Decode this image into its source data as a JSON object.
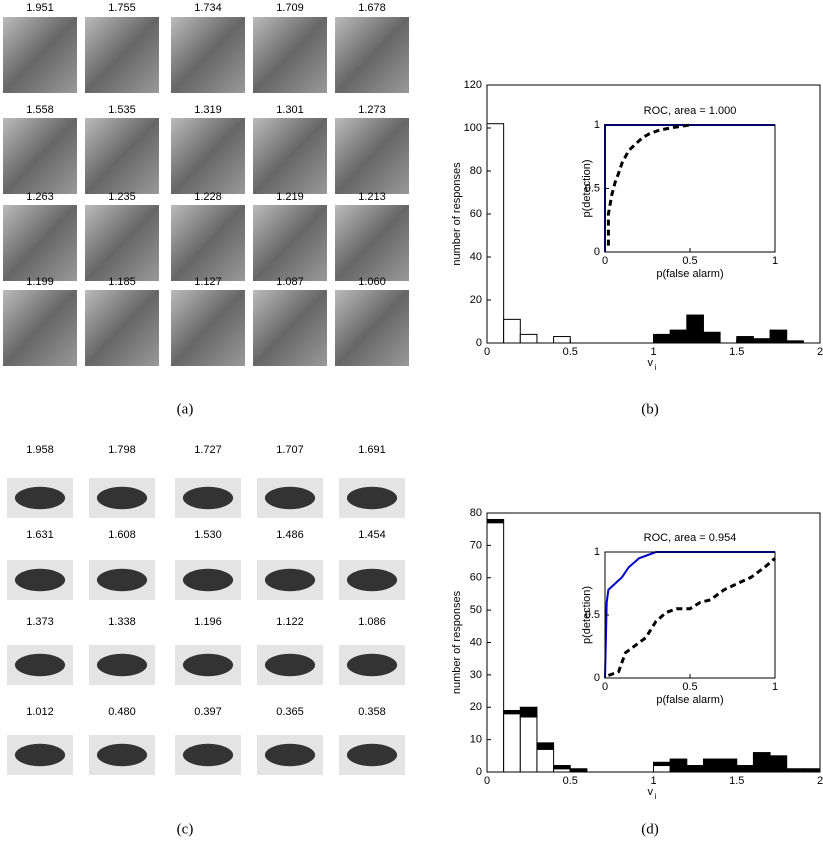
{
  "figures": [
    {
      "caption": "(a)",
      "scores": [
        "1.951",
        "1.755",
        "1.734",
        "1.709",
        "1.678",
        "1.558",
        "1.535",
        "1.319",
        "1.301",
        "1.273",
        "1.263",
        "1.235",
        "1.228",
        "1.219",
        "1.213",
        "1.199",
        "1.185",
        "1.127",
        "1.087",
        "1.060"
      ]
    },
    {
      "caption": "(c)",
      "scores": [
        "1.958",
        "1.798",
        "1.727",
        "1.707",
        "1.691",
        "1.631",
        "1.608",
        "1.530",
        "1.486",
        "1.454",
        "1.373",
        "1.338",
        "1.196",
        "1.122",
        "1.086",
        "1.012",
        "0.480",
        "0.397",
        "0.365",
        "0.358"
      ]
    }
  ],
  "chart_data": [
    {
      "type": "histogram",
      "caption": "(b)",
      "ylabel": "number of responses",
      "xlabel": "v",
      "xlabel_subscript": "i",
      "bins": [
        0,
        0.1,
        0.2,
        0.3,
        0.4,
        0.5,
        0.6,
        0.7,
        0.8,
        0.9,
        1,
        1.1,
        1.2,
        1.3,
        1.4,
        1.5,
        1.6,
        1.7,
        1.8,
        1.9,
        2
      ],
      "series": [
        {
          "color": "#ffffff",
          "values": [
            102,
            11,
            4,
            0,
            3,
            0,
            0,
            0,
            0,
            0,
            0,
            0,
            0,
            0,
            0,
            0,
            0,
            0,
            0,
            0
          ]
        },
        {
          "color": "#000000",
          "values": [
            0,
            0,
            0,
            0,
            0,
            0,
            0,
            0,
            0,
            0,
            4,
            6,
            13,
            5,
            0,
            3,
            2,
            6,
            1,
            0
          ]
        }
      ],
      "xlim": [
        0,
        2
      ],
      "ylim": [
        0,
        120
      ],
      "xticks": [
        0,
        0.5,
        1,
        1.5,
        2
      ],
      "yticks": [
        0,
        20,
        40,
        60,
        80,
        100,
        120
      ]
    },
    {
      "type": "line",
      "title": "ROC, area = 1.000",
      "xlabel": "p(false alarm)",
      "ylabel": "p(detection)",
      "series": [
        {
          "color": "#0000cc",
          "dashed": false,
          "x": [
            0,
            0,
            1
          ],
          "values": [
            0,
            1,
            1
          ]
        },
        {
          "color": "#000000",
          "dashed": true,
          "x": [
            0.02,
            0.02,
            0.04,
            0.06,
            0.08,
            0.1,
            0.12,
            0.14,
            0.18,
            0.22,
            0.26,
            0.32,
            0.4,
            0.5
          ],
          "values": [
            0.05,
            0.3,
            0.45,
            0.55,
            0.62,
            0.7,
            0.75,
            0.8,
            0.85,
            0.9,
            0.93,
            0.96,
            0.98,
            1
          ]
        }
      ],
      "xlim": [
        0,
        1
      ],
      "ylim": [
        0,
        1
      ],
      "xticks": [
        0,
        0.5,
        1
      ],
      "yticks": [
        0,
        0.5,
        1
      ]
    },
    {
      "type": "histogram",
      "caption": "(d)",
      "ylabel": "number of responses",
      "xlabel": "v",
      "xlabel_subscript": "i",
      "bins": [
        0,
        0.1,
        0.2,
        0.3,
        0.4,
        0.5,
        0.6,
        0.7,
        0.8,
        0.9,
        1,
        1.1,
        1.2,
        1.3,
        1.4,
        1.5,
        1.6,
        1.7,
        1.8,
        1.9,
        2
      ],
      "series": [
        {
          "color": "#ffffff",
          "values": [
            77,
            18,
            17,
            7,
            1,
            0,
            0,
            0,
            0,
            0,
            2,
            0,
            0,
            0,
            0,
            0,
            0,
            0,
            0,
            0
          ]
        },
        {
          "color": "#000000",
          "values": [
            1,
            1,
            3,
            2,
            1,
            1,
            0,
            0,
            0,
            0,
            1,
            4,
            2,
            4,
            4,
            2,
            6,
            5,
            1,
            1
          ]
        }
      ],
      "xlim": [
        0,
        2
      ],
      "ylim": [
        0,
        80
      ],
      "xticks": [
        0,
        0.5,
        1,
        1.5,
        2
      ],
      "yticks": [
        0,
        10,
        20,
        30,
        40,
        50,
        60,
        70,
        80
      ]
    },
    {
      "type": "line",
      "title": "ROC, area = 0.954",
      "xlabel": "p(false alarm)",
      "ylabel": "p(detection)",
      "series": [
        {
          "color": "#0000cc",
          "dashed": false,
          "x": [
            0,
            0.01,
            0.02,
            0.06,
            0.1,
            0.14,
            0.2,
            0.3,
            1
          ],
          "values": [
            0,
            0.6,
            0.7,
            0.75,
            0.8,
            0.88,
            0.95,
            1,
            1
          ]
        },
        {
          "color": "#000000",
          "dashed": true,
          "x": [
            0.02,
            0.08,
            0.12,
            0.2,
            0.24,
            0.3,
            0.36,
            0.42,
            0.5,
            0.56,
            0.62,
            0.7,
            0.78,
            0.86,
            0.94,
            1
          ],
          "values": [
            0.02,
            0.05,
            0.2,
            0.28,
            0.32,
            0.45,
            0.52,
            0.55,
            0.55,
            0.6,
            0.62,
            0.7,
            0.75,
            0.8,
            0.88,
            0.95
          ]
        }
      ],
      "xlim": [
        0,
        1
      ],
      "ylim": [
        0,
        1
      ],
      "xticks": [
        0,
        0.5,
        1
      ],
      "yticks": [
        0,
        0.5,
        1
      ]
    }
  ]
}
